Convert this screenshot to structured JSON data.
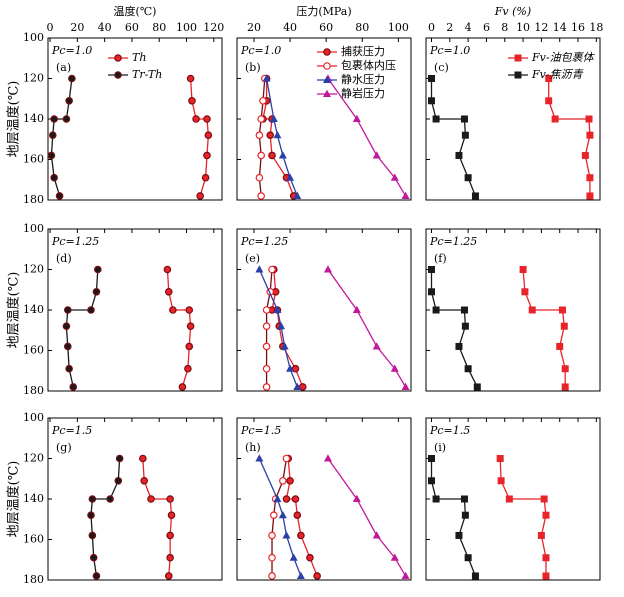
{
  "chart_data": [
    {
      "type": "line",
      "label": "(a)",
      "annotation": "Pc=1.0",
      "xlabel": "温度(℃)",
      "ylabel": "地层温度(℃)",
      "xlim": [
        -1.5,
        126
      ],
      "ylim": [
        100,
        180
      ],
      "xticks": [
        0,
        20,
        40,
        60,
        80,
        100,
        120
      ],
      "yticks": [
        100,
        120,
        140,
        160,
        180
      ],
      "series": [
        {
          "name": "Th",
          "color": "#e8232a",
          "marker": "circle",
          "x": [
            103,
            104,
            107,
            115,
            116,
            115,
            114,
            110
          ],
          "y": [
            120,
            131,
            140,
            140,
            148,
            158,
            169,
            178
          ]
        },
        {
          "name": "Tr-Th",
          "color": "#1a1a1a",
          "marker": "circle",
          "x": [
            16,
            14,
            12,
            3,
            2,
            1,
            3,
            7
          ],
          "y": [
            120,
            131,
            140,
            140,
            148,
            158,
            169,
            178
          ]
        }
      ]
    },
    {
      "type": "line",
      "label": "(b)",
      "annotation": "Pc=1.0",
      "xlabel": "压力(MPa)",
      "xlim": [
        10.6,
        107
      ],
      "xticks": [
        20,
        40,
        60,
        80,
        100
      ],
      "series": [
        {
          "name": "捕获压力",
          "color": "#e8232a",
          "marker": "circle",
          "x": [
            27,
            27,
            25,
            30,
            29,
            30,
            38,
            42
          ],
          "y": [
            120,
            131,
            140,
            140,
            148,
            158,
            169,
            178
          ]
        },
        {
          "name": "包裹体内压",
          "color": "#e8232a",
          "marker": "circle-open",
          "x": [
            26,
            25,
            24,
            23,
            24,
            23,
            24
          ],
          "y": [
            120,
            131,
            140,
            148,
            158,
            169,
            178
          ]
        },
        {
          "name": "静水压力",
          "color": "#2b3fa8",
          "marker": "triangle",
          "x": [
            27,
            31,
            33,
            36,
            40,
            44
          ],
          "y": [
            120,
            140,
            148,
            158,
            169,
            178
          ]
        },
        {
          "name": "静岩压力",
          "color": "#c2189a",
          "marker": "triangle",
          "x": [
            61,
            77,
            88,
            98,
            104
          ],
          "y": [
            120,
            140,
            158,
            169,
            178
          ]
        }
      ]
    },
    {
      "type": "line",
      "label": "(c)",
      "annotation": "Pc=1.0",
      "xlabel": "Fv (%)",
      "xlim": [
        -0.6,
        18.4
      ],
      "xticks": [
        0,
        2,
        4,
        6,
        8,
        10,
        12,
        14,
        16,
        18
      ],
      "series": [
        {
          "name": "Fv-油包裹体",
          "color": "#e8232a",
          "marker": "square",
          "x": [
            12.8,
            12.8,
            13.5,
            17.2,
            17.3,
            16.8,
            17.3,
            17.3
          ],
          "y": [
            120,
            131,
            140,
            140,
            148,
            158,
            169,
            178
          ]
        },
        {
          "name": "Fv-焦沥青",
          "color": "#1a1a1a",
          "marker": "square",
          "x": [
            0,
            0,
            0.5,
            3.6,
            3.7,
            3.0,
            4.0,
            4.8
          ],
          "y": [
            120,
            131,
            140,
            140,
            148,
            158,
            169,
            178
          ]
        }
      ]
    },
    {
      "type": "line",
      "label": "(d)",
      "annotation": "Pc=1.25",
      "ylabel": "地层温度(℃)",
      "yticks": [
        100,
        120,
        140,
        160,
        180
      ],
      "series": [
        {
          "color": "#e8232a",
          "marker": "circle",
          "x": [
            86,
            87,
            90,
            102,
            103,
            102,
            101,
            97
          ],
          "y": [
            120,
            131,
            140,
            140,
            148,
            158,
            169,
            178
          ]
        },
        {
          "color": "#1a1a1a",
          "marker": "circle",
          "x": [
            35,
            34,
            30,
            13,
            12,
            13,
            14,
            17
          ],
          "y": [
            120,
            131,
            140,
            140,
            148,
            158,
            169,
            178
          ]
        }
      ]
    },
    {
      "type": "line",
      "label": "(e)",
      "annotation": "Pc=1.25",
      "series": [
        {
          "color": "#e8232a",
          "marker": "circle",
          "x": [
            31,
            32,
            30,
            33,
            34,
            36,
            43,
            47
          ],
          "y": [
            120,
            131,
            140,
            140,
            148,
            158,
            169,
            178
          ]
        },
        {
          "color": "#e8232a",
          "marker": "circle-open",
          "x": [
            30,
            29,
            27,
            27,
            27,
            27,
            27
          ],
          "y": [
            120,
            131,
            140,
            148,
            158,
            169,
            178
          ]
        },
        {
          "color": "#2b3fa8",
          "marker": "triangle",
          "x": [
            23,
            33,
            35,
            37,
            40,
            44
          ],
          "y": [
            120,
            140,
            148,
            158,
            169,
            178
          ]
        },
        {
          "color": "#c2189a",
          "marker": "triangle",
          "x": [
            61,
            77,
            88,
            98,
            104
          ],
          "y": [
            120,
            140,
            158,
            169,
            178
          ]
        }
      ]
    },
    {
      "type": "line",
      "label": "(f)",
      "annotation": "Pc=1.25",
      "series": [
        {
          "color": "#e8232a",
          "marker": "square",
          "x": [
            10,
            10.2,
            11,
            14.3,
            14.5,
            14,
            14.6,
            14.6
          ],
          "y": [
            120,
            131,
            140,
            140,
            148,
            158,
            169,
            178
          ]
        },
        {
          "color": "#1a1a1a",
          "marker": "square",
          "x": [
            0,
            0,
            0.5,
            3.6,
            3.7,
            3.0,
            4.0,
            5.0
          ],
          "y": [
            120,
            131,
            140,
            140,
            148,
            158,
            169,
            178
          ]
        }
      ]
    },
    {
      "type": "line",
      "label": "(g)",
      "annotation": "Pc=1.5",
      "ylabel": "地层温度(℃)",
      "yticks": [
        100,
        120,
        140,
        160,
        180
      ],
      "series": [
        {
          "color": "#e8232a",
          "marker": "circle",
          "x": [
            68,
            69,
            74,
            88,
            89,
            88,
            88,
            87
          ],
          "y": [
            120,
            131,
            140,
            140,
            148,
            158,
            169,
            178
          ]
        },
        {
          "color": "#1a1a1a",
          "marker": "circle",
          "x": [
            51,
            50,
            44,
            31,
            30,
            31,
            32,
            34
          ],
          "y": [
            120,
            131,
            140,
            140,
            148,
            158,
            169,
            178
          ]
        }
      ]
    },
    {
      "type": "line",
      "label": "(h)",
      "annotation": "Pc=1.5",
      "series": [
        {
          "color": "#e8232a",
          "marker": "circle",
          "x": [
            39,
            40,
            38,
            43,
            44,
            46,
            51,
            55
          ],
          "y": [
            120,
            131,
            140,
            140,
            148,
            158,
            169,
            178
          ]
        },
        {
          "color": "#e8232a",
          "marker": "circle-open",
          "x": [
            38,
            36,
            32,
            31,
            30,
            30,
            30
          ],
          "y": [
            120,
            131,
            140,
            148,
            158,
            169,
            178
          ]
        },
        {
          "color": "#2b3fa8",
          "marker": "triangle",
          "x": [
            23,
            33,
            36,
            38,
            42,
            46
          ],
          "y": [
            120,
            140,
            148,
            158,
            169,
            178
          ]
        },
        {
          "color": "#c2189a",
          "marker": "triangle",
          "x": [
            61,
            77,
            88,
            98,
            104
          ],
          "y": [
            120,
            140,
            158,
            169,
            178
          ]
        }
      ]
    },
    {
      "type": "line",
      "label": "(i)",
      "annotation": "Pc=1.5",
      "series": [
        {
          "color": "#e8232a",
          "marker": "square",
          "x": [
            7.5,
            7.6,
            8.5,
            12.3,
            12.5,
            12.0,
            12.5,
            12.5
          ],
          "y": [
            120,
            131,
            140,
            140,
            148,
            158,
            169,
            178
          ]
        },
        {
          "color": "#1a1a1a",
          "marker": "square",
          "x": [
            0,
            0,
            0.5,
            3.6,
            3.7,
            3.0,
            4.0,
            4.8
          ],
          "y": [
            120,
            131,
            140,
            140,
            148,
            158,
            169,
            178
          ]
        }
      ]
    }
  ]
}
